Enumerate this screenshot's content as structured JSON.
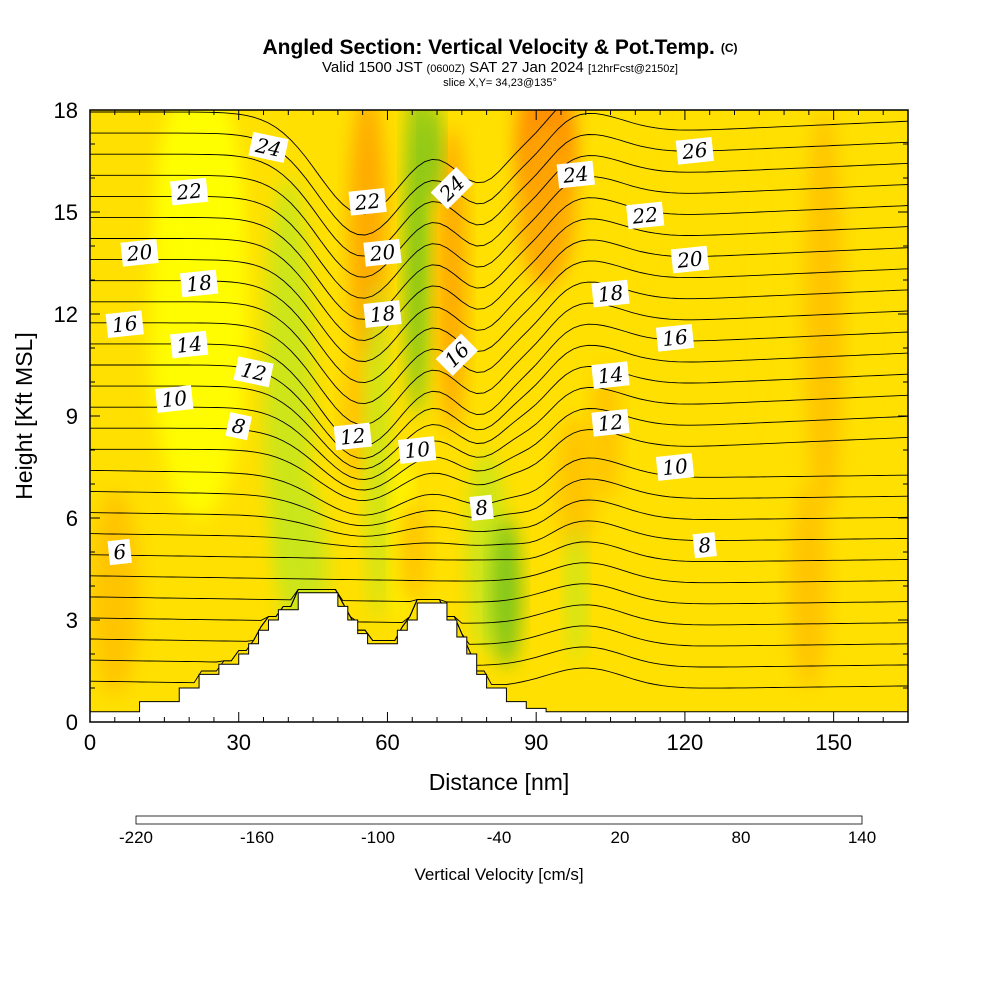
{
  "title": {
    "main": "Angled Section: Vertical Velocity & Pot.Temp.",
    "main_unit": "(C)",
    "valid_prefix": "Valid 1500 JST",
    "valid_utc": "(0600Z)",
    "valid_date": "SAT 27 Jan 2024",
    "forecast": "[12hrFcst@2150z]",
    "slice": "slice X,Y= 34,23@135°"
  },
  "chart_data": {
    "type": "heatmap",
    "xlabel": "Distance [nm]",
    "ylabel": "Height [Kft MSL]",
    "xlim": [
      0,
      165
    ],
    "ylim": [
      0,
      18
    ],
    "xticks": [
      0,
      30,
      60,
      90,
      120,
      150
    ],
    "yticks": [
      0,
      3,
      6,
      9,
      12,
      15,
      18
    ],
    "fill_variable": "Vertical Velocity [cm/s]",
    "colorbar": {
      "title": "Vertical Velocity [cm/s]",
      "min": -220,
      "max": 140,
      "step": 20,
      "tick_labels": [
        -220,
        -160,
        -100,
        -40,
        20,
        80,
        140
      ],
      "colors": [
        "#0000ee",
        "#0050ff",
        "#0096ff",
        "#00ccff",
        "#00f0e0",
        "#00d890",
        "#00bb44",
        "#22aa22",
        "#77c41c",
        "#c8e61a",
        "#ffff00",
        "#ffe000",
        "#ffc200",
        "#ffa500",
        "#ff8800",
        "#ff5a00",
        "#ff2000",
        "#dd0022",
        "#aa0055",
        "#780078"
      ]
    },
    "terrain_profile_kft": [
      [
        0,
        0.3
      ],
      [
        8,
        0.3
      ],
      [
        10,
        0.6
      ],
      [
        16,
        0.6
      ],
      [
        18,
        1.0
      ],
      [
        22,
        1.4
      ],
      [
        26,
        1.7
      ],
      [
        30,
        2.0
      ],
      [
        32,
        2.3
      ],
      [
        34,
        2.7
      ],
      [
        36,
        3.0
      ],
      [
        38,
        3.3
      ],
      [
        42,
        3.8
      ],
      [
        48,
        3.8
      ],
      [
        50,
        3.4
      ],
      [
        52,
        3.0
      ],
      [
        54,
        2.6
      ],
      [
        56,
        2.3
      ],
      [
        58,
        2.3
      ],
      [
        60,
        2.3
      ],
      [
        62,
        2.7
      ],
      [
        64,
        3.0
      ],
      [
        66,
        3.5
      ],
      [
        70,
        3.5
      ],
      [
        72,
        3.0
      ],
      [
        74,
        2.5
      ],
      [
        76,
        2.0
      ],
      [
        78,
        1.4
      ],
      [
        80,
        1.0
      ],
      [
        84,
        0.6
      ],
      [
        88,
        0.4
      ],
      [
        92,
        0.3
      ],
      [
        165,
        0.3
      ]
    ],
    "contour_variable": "Potential Temperature (C)",
    "contour_labels": [
      {
        "value": 24,
        "x": 36,
        "y": 16.9
      },
      {
        "value": 22,
        "x": 20,
        "y": 15.6
      },
      {
        "value": 20,
        "x": 10,
        "y": 13.8
      },
      {
        "value": 18,
        "x": 22,
        "y": 12.9
      },
      {
        "value": 16,
        "x": 7,
        "y": 11.7
      },
      {
        "value": 14,
        "x": 20,
        "y": 11.1
      },
      {
        "value": 12,
        "x": 33,
        "y": 10.3
      },
      {
        "value": 10,
        "x": 17,
        "y": 9.5
      },
      {
        "value": 8,
        "x": 30,
        "y": 8.7
      },
      {
        "value": 6,
        "x": 6,
        "y": 5.0
      },
      {
        "value": 22,
        "x": 56,
        "y": 15.3
      },
      {
        "value": 20,
        "x": 59,
        "y": 13.8
      },
      {
        "value": 18,
        "x": 59,
        "y": 12.0
      },
      {
        "value": 12,
        "x": 53,
        "y": 8.4
      },
      {
        "value": 10,
        "x": 66,
        "y": 8.0
      },
      {
        "value": 24,
        "x": 73,
        "y": 15.7
      },
      {
        "value": 16,
        "x": 74,
        "y": 10.8
      },
      {
        "value": 8,
        "x": 79,
        "y": 6.3
      },
      {
        "value": 24,
        "x": 98,
        "y": 16.1
      },
      {
        "value": 26,
        "x": 122,
        "y": 16.8
      },
      {
        "value": 22,
        "x": 112,
        "y": 14.9
      },
      {
        "value": 20,
        "x": 121,
        "y": 13.6
      },
      {
        "value": 18,
        "x": 105,
        "y": 12.6
      },
      {
        "value": 16,
        "x": 118,
        "y": 11.3
      },
      {
        "value": 14,
        "x": 105,
        "y": 10.2
      },
      {
        "value": 12,
        "x": 105,
        "y": 8.8
      },
      {
        "value": 10,
        "x": 118,
        "y": 7.5
      },
      {
        "value": 8,
        "x": 124,
        "y": 5.2
      }
    ]
  }
}
